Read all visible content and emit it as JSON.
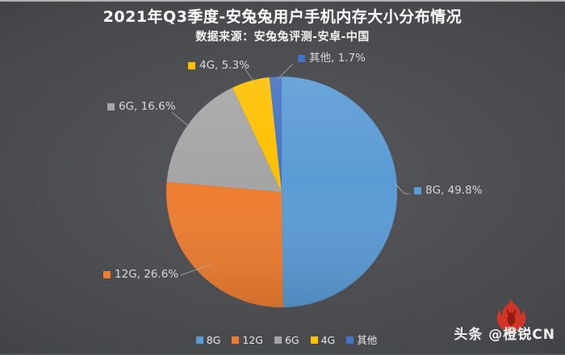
{
  "header": {
    "title": "2021年Q3季度-安兔兔用户手机内存大小分布情况",
    "subtitle": "数据来源：安兔兔评测-安卓-中国"
  },
  "chart_data": {
    "type": "pie",
    "title": "2021年Q3季度-安兔兔用户手机内存大小分布情况",
    "source_note": "数据来源：安兔兔评测-安卓-中国",
    "categories": [
      "8G",
      "12G",
      "6G",
      "4G",
      "其他"
    ],
    "values": [
      49.8,
      26.6,
      16.6,
      5.3,
      1.7
    ],
    "unit": "%",
    "colors": [
      "#5B9BD5",
      "#ED7D31",
      "#A5A5A5",
      "#FFC000",
      "#4472C4"
    ],
    "start_angle_deg": 0,
    "direction": "clockwise",
    "data_labels": [
      "8G, 49.8%",
      "12G, 26.6%",
      "6G, 16.6%",
      "4G, 5.3%",
      "其他, 1.7%"
    ],
    "legend_position": "bottom",
    "label_color": "#d9d9d9",
    "leader_line_color": "#a8a8a8"
  },
  "legend": {
    "items": [
      {
        "label": "8G",
        "color": "#5B9BD5"
      },
      {
        "label": "12G",
        "color": "#ED7D31"
      },
      {
        "label": "6G",
        "color": "#A5A5A5"
      },
      {
        "label": "4G",
        "color": "#FFC000"
      },
      {
        "label": "其他",
        "color": "#4472C4"
      }
    ]
  },
  "watermark": {
    "text": "头条 @橙锐CN",
    "flame_primary": "#d23528",
    "flame_dark": "#8f1c12"
  }
}
